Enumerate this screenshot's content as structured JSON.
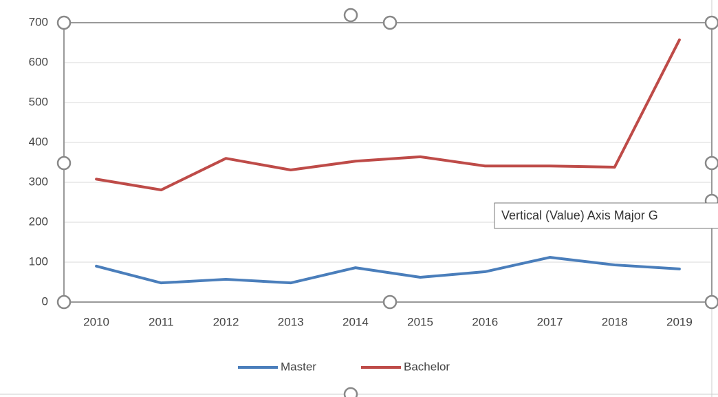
{
  "chart_data": {
    "type": "line",
    "categories": [
      "2010",
      "2011",
      "2012",
      "2013",
      "2014",
      "2015",
      "2016",
      "2017",
      "2018",
      "2019"
    ],
    "series": [
      {
        "name": "Master",
        "color": "#4a7ebb",
        "values": [
          90,
          48,
          57,
          48,
          86,
          62,
          76,
          112,
          93,
          83
        ]
      },
      {
        "name": "Bachelor",
        "color": "#be4b48",
        "values": [
          308,
          281,
          360,
          331,
          353,
          364,
          341,
          341,
          338,
          657
        ]
      }
    ],
    "ylim": [
      0,
      700
    ],
    "yticks": [
      0,
      100,
      200,
      300,
      400,
      500,
      600,
      700
    ],
    "grid": true,
    "legend": "bottom",
    "tooltip": "Vertical (Value) Axis Major G"
  }
}
